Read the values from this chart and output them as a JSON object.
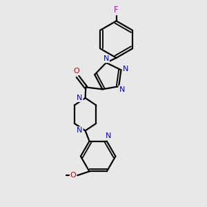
{
  "bg_color": "#e8e8e8",
  "bond_color": "#000000",
  "bond_width": 1.6,
  "atom_colors": {
    "N": "#0000cc",
    "O": "#cc0000",
    "F": "#cc00cc",
    "C": "#000000"
  },
  "font_size": 8.0
}
